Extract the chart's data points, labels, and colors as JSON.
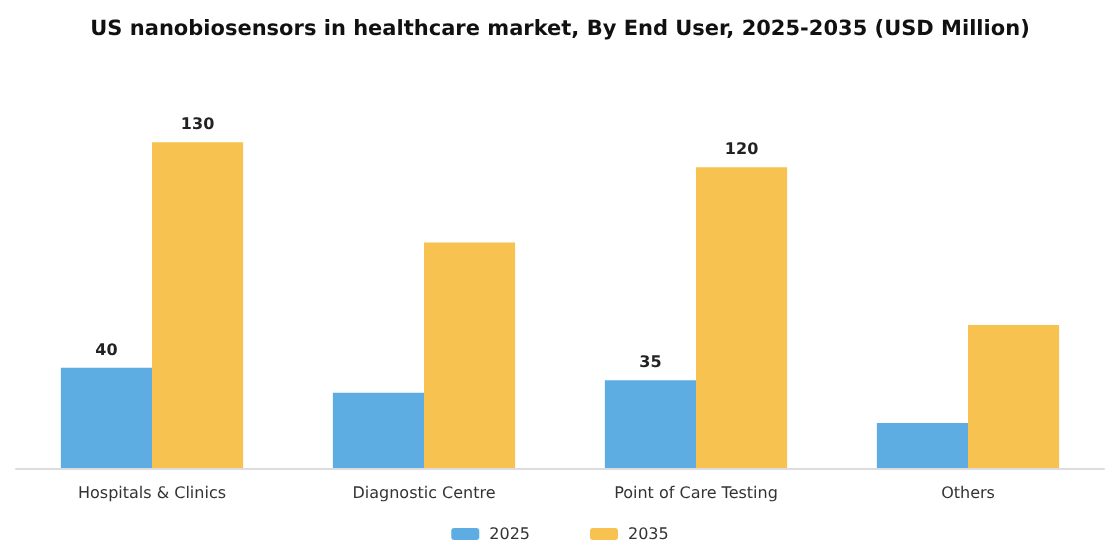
{
  "chart_data": {
    "type": "bar",
    "title": "US nanobiosensors in healthcare market, By End User, 2025-2035 (USD Million)",
    "categories": [
      "Hospitals & Clinics",
      "Diagnostic Centre",
      "Point of Care Testing",
      "Others"
    ],
    "series": [
      {
        "name": "2025",
        "color": "#5dade2",
        "values": [
          40,
          30,
          35,
          18
        ],
        "value_labels": [
          "40",
          null,
          "35",
          null
        ]
      },
      {
        "name": "2035",
        "color": "#f7c24f",
        "values": [
          130,
          90,
          120,
          57
        ],
        "value_labels": [
          "130",
          null,
          "120",
          null
        ]
      }
    ],
    "legend": "bottom",
    "tick_labels": "x"
  }
}
